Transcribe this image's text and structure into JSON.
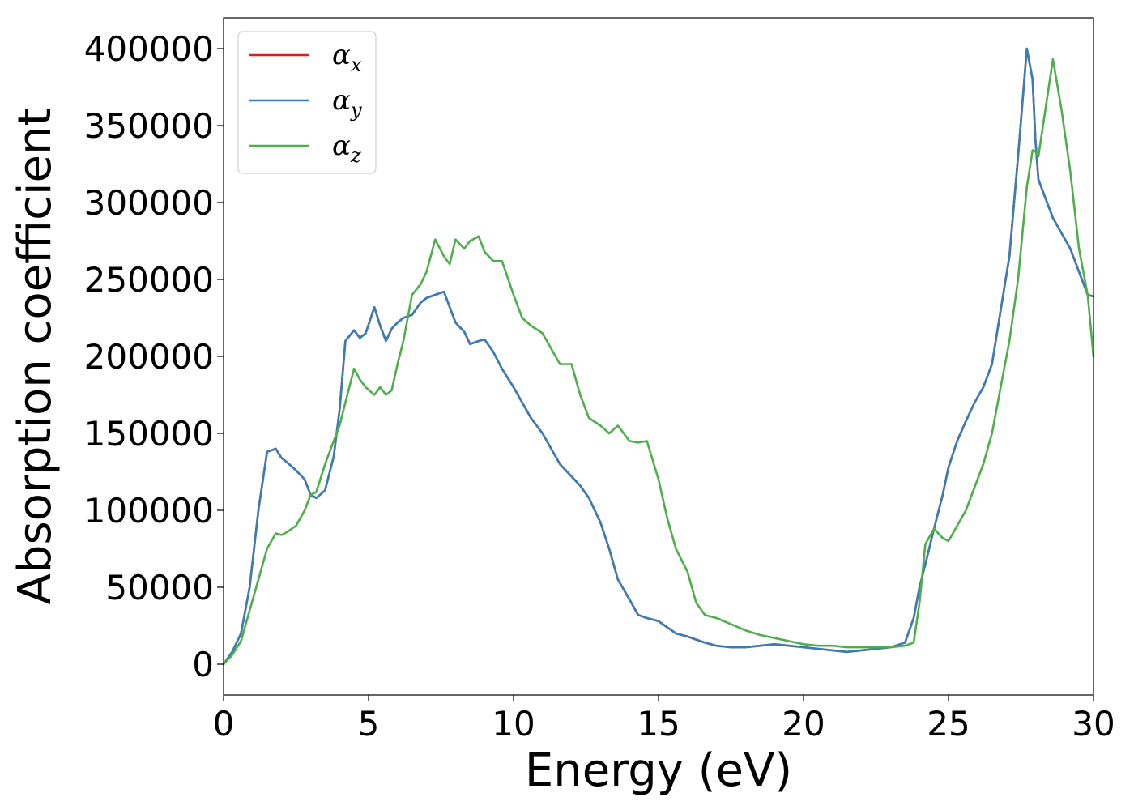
{
  "chart_data": {
    "type": "line",
    "title": "",
    "xlabel": "Energy (eV)",
    "ylabel": "Absorption coefficient",
    "xlim": [
      0,
      30
    ],
    "ylim": [
      -20000,
      420000
    ],
    "xticks": [
      0,
      5,
      10,
      15,
      20,
      25,
      30
    ],
    "yticks": [
      0,
      50000,
      100000,
      150000,
      200000,
      250000,
      300000,
      350000,
      400000
    ],
    "grid": false,
    "legend_position": "top-left",
    "series": [
      {
        "name": "αx",
        "symbol": "α",
        "subscript": "x",
        "color": "#e41a1c",
        "x": [
          0,
          0.3,
          0.6,
          0.9,
          1.2,
          1.5,
          1.8,
          2.0,
          2.2,
          2.5,
          2.8,
          3.0,
          3.2,
          3.5,
          3.8,
          4.0,
          4.2,
          4.5,
          4.7,
          4.9,
          5.2,
          5.4,
          5.6,
          5.8,
          6.0,
          6.2,
          6.5,
          6.8,
          7.0,
          7.3,
          7.6,
          7.8,
          8.0,
          8.3,
          8.5,
          8.8,
          9.0,
          9.3,
          9.6,
          10.0,
          10.3,
          10.6,
          11.0,
          11.3,
          11.6,
          12.0,
          12.3,
          12.6,
          13.0,
          13.3,
          13.6,
          14.0,
          14.3,
          14.6,
          15.0,
          15.3,
          15.6,
          16.0,
          16.3,
          16.6,
          17.0,
          17.5,
          18.0,
          18.5,
          19.0,
          19.5,
          20.0,
          20.5,
          21.0,
          21.5,
          22.0,
          22.5,
          23.0,
          23.5,
          23.8,
          24.0,
          24.2,
          24.5,
          24.8,
          25.0,
          25.3,
          25.6,
          25.9,
          26.2,
          26.5,
          26.8,
          27.1,
          27.4,
          27.7,
          27.9,
          28.0,
          28.1,
          28.3,
          28.6,
          28.9,
          29.2,
          29.5,
          29.8,
          30.0
        ],
        "y": [
          0,
          8000,
          20000,
          50000,
          100000,
          138000,
          140000,
          134000,
          131000,
          126000,
          120000,
          110000,
          108000,
          113000,
          135000,
          165000,
          210000,
          217000,
          212000,
          215000,
          232000,
          220000,
          210000,
          218000,
          222000,
          225000,
          227000,
          235000,
          238000,
          240000,
          242000,
          232000,
          222000,
          216000,
          208000,
          210000,
          211000,
          203000,
          192000,
          180000,
          170000,
          160000,
          150000,
          140000,
          130000,
          122000,
          116000,
          108000,
          92000,
          75000,
          55000,
          42000,
          32000,
          30000,
          28000,
          24000,
          20000,
          18000,
          16000,
          14000,
          12000,
          11000,
          11000,
          12000,
          13000,
          12000,
          11000,
          10000,
          9000,
          8000,
          9000,
          10000,
          11000,
          14000,
          30000,
          50000,
          65000,
          88000,
          110000,
          128000,
          145000,
          158000,
          170000,
          180000,
          195000,
          230000,
          265000,
          330000,
          400000,
          380000,
          340000,
          315000,
          305000,
          290000,
          280000,
          270000,
          255000,
          240000,
          239000
        ]
      },
      {
        "name": "αy",
        "symbol": "α",
        "subscript": "y",
        "color": "#377eb8",
        "x": [
          0,
          0.3,
          0.6,
          0.9,
          1.2,
          1.5,
          1.8,
          2.0,
          2.2,
          2.5,
          2.8,
          3.0,
          3.2,
          3.5,
          3.8,
          4.0,
          4.2,
          4.5,
          4.7,
          4.9,
          5.2,
          5.4,
          5.6,
          5.8,
          6.0,
          6.2,
          6.5,
          6.8,
          7.0,
          7.3,
          7.6,
          7.8,
          8.0,
          8.3,
          8.5,
          8.8,
          9.0,
          9.3,
          9.6,
          10.0,
          10.3,
          10.6,
          11.0,
          11.3,
          11.6,
          12.0,
          12.3,
          12.6,
          13.0,
          13.3,
          13.6,
          14.0,
          14.3,
          14.6,
          15.0,
          15.3,
          15.6,
          16.0,
          16.3,
          16.6,
          17.0,
          17.5,
          18.0,
          18.5,
          19.0,
          19.5,
          20.0,
          20.5,
          21.0,
          21.5,
          22.0,
          22.5,
          23.0,
          23.5,
          23.8,
          24.0,
          24.2,
          24.5,
          24.8,
          25.0,
          25.3,
          25.6,
          25.9,
          26.2,
          26.5,
          26.8,
          27.1,
          27.4,
          27.7,
          27.9,
          28.0,
          28.1,
          28.3,
          28.6,
          28.9,
          29.2,
          29.5,
          29.8,
          30.0
        ],
        "y": [
          0,
          8000,
          20000,
          50000,
          100000,
          138000,
          140000,
          134000,
          131000,
          126000,
          120000,
          110000,
          108000,
          113000,
          135000,
          165000,
          210000,
          217000,
          212000,
          215000,
          232000,
          220000,
          210000,
          218000,
          222000,
          225000,
          227000,
          235000,
          238000,
          240000,
          242000,
          232000,
          222000,
          216000,
          208000,
          210000,
          211000,
          203000,
          192000,
          180000,
          170000,
          160000,
          150000,
          140000,
          130000,
          122000,
          116000,
          108000,
          92000,
          75000,
          55000,
          42000,
          32000,
          30000,
          28000,
          24000,
          20000,
          18000,
          16000,
          14000,
          12000,
          11000,
          11000,
          12000,
          13000,
          12000,
          11000,
          10000,
          9000,
          8000,
          9000,
          10000,
          11000,
          14000,
          30000,
          50000,
          65000,
          88000,
          110000,
          128000,
          145000,
          158000,
          170000,
          180000,
          195000,
          230000,
          265000,
          330000,
          400000,
          380000,
          340000,
          315000,
          305000,
          290000,
          280000,
          270000,
          255000,
          240000,
          239000
        ]
      },
      {
        "name": "αz",
        "symbol": "α",
        "subscript": "z",
        "color": "#4daf4a",
        "x": [
          0,
          0.3,
          0.6,
          0.9,
          1.2,
          1.5,
          1.8,
          2.0,
          2.2,
          2.5,
          2.8,
          3.0,
          3.2,
          3.5,
          3.8,
          4.0,
          4.2,
          4.5,
          4.7,
          4.9,
          5.2,
          5.4,
          5.6,
          5.8,
          6.0,
          6.2,
          6.5,
          6.8,
          7.0,
          7.3,
          7.6,
          7.8,
          8.0,
          8.3,
          8.5,
          8.8,
          9.0,
          9.3,
          9.6,
          10.0,
          10.3,
          10.6,
          11.0,
          11.3,
          11.6,
          12.0,
          12.3,
          12.6,
          13.0,
          13.3,
          13.6,
          14.0,
          14.3,
          14.6,
          15.0,
          15.3,
          15.6,
          16.0,
          16.3,
          16.6,
          17.0,
          17.5,
          18.0,
          18.5,
          19.0,
          19.5,
          20.0,
          20.5,
          21.0,
          21.5,
          22.0,
          22.5,
          23.0,
          23.5,
          23.8,
          24.0,
          24.2,
          24.5,
          24.8,
          25.0,
          25.3,
          25.6,
          25.9,
          26.2,
          26.5,
          26.8,
          27.1,
          27.4,
          27.7,
          27.9,
          28.0,
          28.1,
          28.3,
          28.6,
          28.9,
          29.2,
          29.5,
          29.8,
          30.0
        ],
        "y": [
          0,
          6000,
          15000,
          35000,
          55000,
          75000,
          85000,
          84000,
          86000,
          90000,
          100000,
          110000,
          112000,
          130000,
          145000,
          155000,
          170000,
          192000,
          185000,
          180000,
          175000,
          180000,
          175000,
          178000,
          195000,
          210000,
          240000,
          247000,
          255000,
          276000,
          265000,
          260000,
          276000,
          270000,
          275000,
          278000,
          268000,
          262000,
          262000,
          240000,
          225000,
          220000,
          215000,
          205000,
          195000,
          195000,
          175000,
          160000,
          155000,
          150000,
          155000,
          145000,
          144000,
          145000,
          120000,
          95000,
          75000,
          60000,
          40000,
          32000,
          30000,
          26000,
          22000,
          19000,
          17000,
          15000,
          13000,
          12000,
          12000,
          11000,
          11000,
          11000,
          11000,
          12000,
          14000,
          40000,
          78000,
          88000,
          82000,
          80000,
          90000,
          100000,
          115000,
          130000,
          150000,
          180000,
          210000,
          250000,
          310000,
          334000,
          333000,
          330000,
          355000,
          393000,
          360000,
          320000,
          270000,
          240000,
          200000
        ]
      }
    ]
  }
}
